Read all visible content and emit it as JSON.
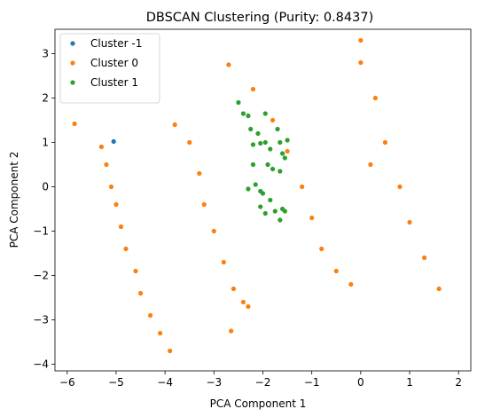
{
  "chart_data": {
    "type": "scatter",
    "title": "DBSCAN Clustering (Purity: 0.8437)",
    "xlabel": "PCA Component 1",
    "ylabel": "PCA Component 2",
    "xlim": [
      -6.25,
      2.25
    ],
    "ylim": [
      -4.15,
      3.55
    ],
    "xticks": [
      -6,
      -5,
      -4,
      -3,
      -2,
      -1,
      0,
      1,
      2
    ],
    "yticks": [
      -4,
      -3,
      -2,
      -1,
      0,
      1,
      2,
      3
    ],
    "grid": false,
    "legend_position": "top-left",
    "series": [
      {
        "name": "Cluster -1",
        "color": "#1f77b4",
        "points": [
          [
            -5.05,
            1.02
          ]
        ]
      },
      {
        "name": "Cluster 0",
        "color": "#ff7f0e",
        "points": [
          [
            -5.85,
            1.42
          ],
          [
            -2.7,
            2.75
          ],
          [
            0.0,
            3.3
          ],
          [
            -2.65,
            -3.25
          ],
          [
            -2.3,
            -2.7
          ],
          [
            -5.3,
            0.9
          ],
          [
            -5.2,
            0.5
          ],
          [
            -5.1,
            0.0
          ],
          [
            -5.0,
            -0.4
          ],
          [
            -4.9,
            -0.9
          ],
          [
            -4.8,
            -1.4
          ],
          [
            -4.6,
            -1.9
          ],
          [
            -4.5,
            -2.4
          ],
          [
            -4.3,
            -2.9
          ],
          [
            -4.1,
            -3.3
          ],
          [
            -3.9,
            -3.7
          ],
          [
            -3.8,
            1.4
          ],
          [
            -3.5,
            1.0
          ],
          [
            -3.3,
            0.3
          ],
          [
            -3.2,
            -0.4
          ],
          [
            -3.0,
            -1.0
          ],
          [
            -2.8,
            -1.7
          ],
          [
            -2.6,
            -2.3
          ],
          [
            -2.4,
            -2.6
          ],
          [
            -2.2,
            2.2
          ],
          [
            -1.8,
            1.5
          ],
          [
            -1.5,
            0.8
          ],
          [
            -1.2,
            0.0
          ],
          [
            -1.0,
            -0.7
          ],
          [
            -0.8,
            -1.4
          ],
          [
            -0.5,
            -1.9
          ],
          [
            -0.2,
            -2.2
          ],
          [
            0.0,
            2.8
          ],
          [
            0.3,
            2.0
          ],
          [
            0.5,
            1.0
          ],
          [
            0.8,
            0.0
          ],
          [
            1.0,
            -0.8
          ],
          [
            1.3,
            -1.6
          ],
          [
            1.6,
            -2.3
          ],
          [
            0.2,
            0.5
          ]
        ]
      },
      {
        "name": "Cluster 1",
        "color": "#2ca02c",
        "points": [
          [
            -2.5,
            1.9
          ],
          [
            -2.4,
            1.65
          ],
          [
            -2.3,
            1.6
          ],
          [
            -1.95,
            1.65
          ],
          [
            -2.25,
            1.3
          ],
          [
            -2.1,
            1.2
          ],
          [
            -2.2,
            0.95
          ],
          [
            -2.05,
            0.98
          ],
          [
            -1.95,
            1.0
          ],
          [
            -1.85,
            0.85
          ],
          [
            -1.7,
            1.3
          ],
          [
            -1.65,
            1.0
          ],
          [
            -1.5,
            1.05
          ],
          [
            -1.55,
            0.65
          ],
          [
            -2.2,
            0.5
          ],
          [
            -1.9,
            0.5
          ],
          [
            -1.8,
            0.4
          ],
          [
            -1.65,
            0.35
          ],
          [
            -1.6,
            0.75
          ],
          [
            -2.15,
            0.05
          ],
          [
            -2.3,
            -0.05
          ],
          [
            -2.05,
            -0.1
          ],
          [
            -2.0,
            -0.15
          ],
          [
            -1.85,
            -0.3
          ],
          [
            -2.05,
            -0.45
          ],
          [
            -1.95,
            -0.6
          ],
          [
            -1.75,
            -0.55
          ],
          [
            -1.6,
            -0.5
          ],
          [
            -1.55,
            -0.55
          ],
          [
            -1.65,
            -0.75
          ]
        ]
      }
    ]
  }
}
